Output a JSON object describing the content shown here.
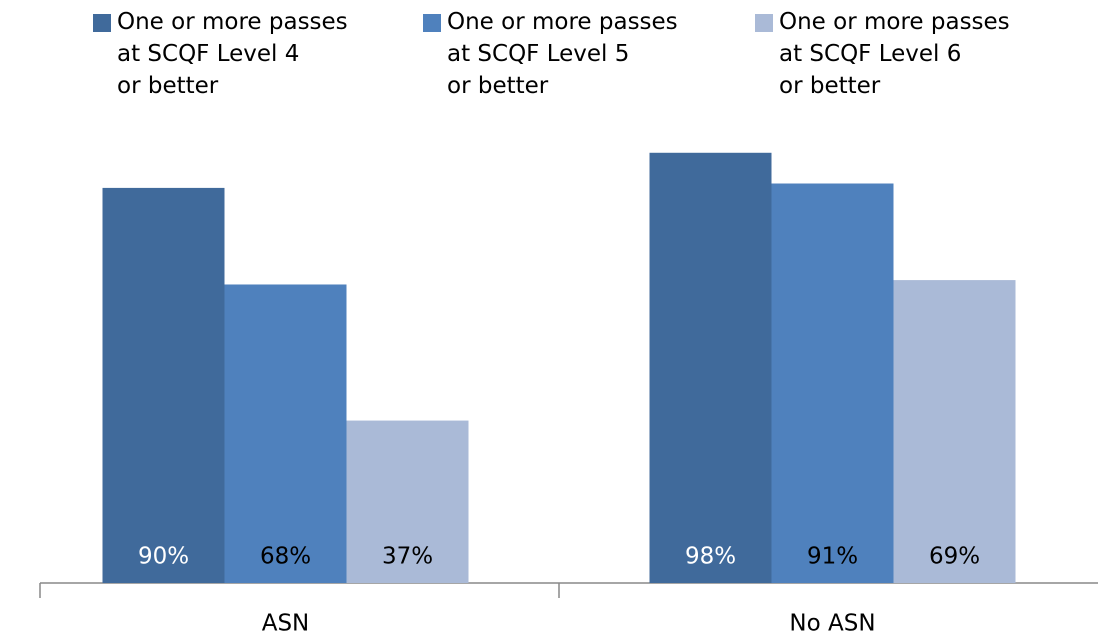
{
  "chart_data": {
    "type": "bar",
    "categories": [
      "ASN",
      "No ASN"
    ],
    "series": [
      {
        "name": "One or more passes\nat SCQF Level 4\nor better",
        "color": "#406a9b",
        "values": [
          90,
          98
        ],
        "value_labels": [
          "90%",
          "98%"
        ]
      },
      {
        "name": "One or more passes\nat SCQF Level 5\nor better",
        "color": "#4f81bd",
        "values": [
          68,
          91
        ],
        "value_labels": [
          "68%",
          "91%"
        ]
      },
      {
        "name": "One or more passes\nat SCQF Level 6\nor better",
        "color": "#aabad7",
        "values": [
          37,
          69
        ],
        "value_labels": [
          "37%",
          "69%"
        ]
      }
    ],
    "ylim": [
      0,
      100
    ]
  }
}
